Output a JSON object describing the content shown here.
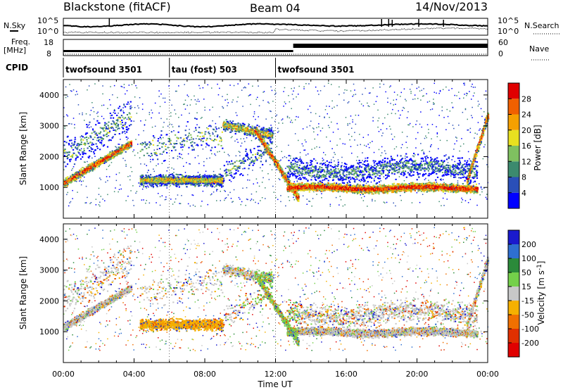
{
  "header": {
    "station": "Blackstone (fitACF)",
    "beam": "Beam 04",
    "date": "14/Nov/2013"
  },
  "noise_panel": {
    "left_label": "N.Sky",
    "right_label": "N.Search",
    "left_ticks": [
      "10^5",
      "10^0"
    ],
    "right_ticks": [
      "10^5",
      "10^0"
    ]
  },
  "freq_panel": {
    "left_label_1": "Freq.",
    "left_label_2": "[MHz]",
    "right_label": "Nave",
    "left_ticks": [
      "18",
      "8"
    ],
    "right_ticks": [
      "60",
      "0"
    ]
  },
  "cpid": {
    "label": "CPID",
    "segments": [
      {
        "start": 0,
        "end": 6,
        "name": "twofsound 3501"
      },
      {
        "start": 6,
        "end": 12,
        "name": "tau (fost) 503"
      },
      {
        "start": 12,
        "end": 24,
        "name": "twofsound 3501"
      }
    ]
  },
  "chart_data": [
    {
      "type": "heatmap",
      "name": "Power",
      "xlabel": "Time UT",
      "ylabel": "Slant Range [km]",
      "xlim": [
        0,
        24
      ],
      "ylim": [
        0,
        4500
      ],
      "yticks": [
        "1000",
        "2000",
        "3000",
        "4000"
      ],
      "colorbar_label": "Power [dB]",
      "colorbar_ticks": [
        "28",
        "24",
        "20",
        "16",
        "12",
        "8",
        "4"
      ],
      "colorbar_colors": [
        "#0000ff",
        "#2a4fb8",
        "#3c8a6e",
        "#7fc060",
        "#e8e020",
        "#f5a000",
        "#f06000",
        "#e00000"
      ]
    },
    {
      "type": "heatmap",
      "name": "Velocity",
      "xlabel": "Time UT",
      "ylabel": "Slant Range [km]",
      "xlim": [
        0,
        24
      ],
      "ylim": [
        0,
        4500
      ],
      "yticks": [
        "1000",
        "2000",
        "3000",
        "4000"
      ],
      "xticks": [
        "00:00",
        "04:00",
        "08:00",
        "12:00",
        "16:00",
        "20:00",
        "00:00"
      ],
      "colorbar_label": "Velocity [m s^-1]",
      "colorbar_ticks": [
        "200",
        "100",
        "50",
        "15",
        "-15",
        "-50",
        "-100",
        "-200"
      ],
      "colorbar_colors": [
        "#1a1acd",
        "#2e6fd0",
        "#2b8a3a",
        "#74d04a",
        "#c8c8c8",
        "#f5b000",
        "#f07000",
        "#e03000",
        "#e00000"
      ]
    }
  ]
}
